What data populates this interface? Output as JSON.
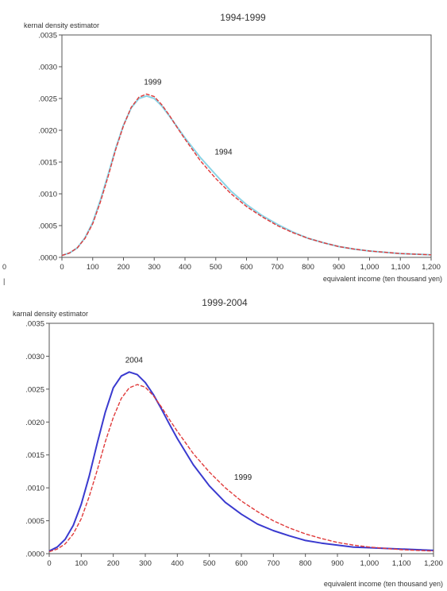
{
  "margin_marks": [
    "0",
    "|"
  ],
  "chart_data": [
    {
      "type": "line",
      "title": "1994-1999",
      "ylabel": "kernal density estimator",
      "xlabel": "equivalent income (ten thousand yen)",
      "xlim": [
        0,
        1200
      ],
      "ylim": [
        0,
        0.0035
      ],
      "xticks": [
        "0",
        "100",
        "200",
        "300",
        "400",
        "500",
        "600",
        "700",
        "800",
        "900",
        "1,000",
        "1,100",
        "1,200"
      ],
      "yticks": [
        ".0000",
        ".0005",
        ".0010",
        ".0015",
        ".0020",
        ".0025",
        ".0030",
        ".0035"
      ],
      "colors": {
        "series_1994": "#8ad4e6",
        "series_1999": "#e03a3a"
      },
      "series": [
        {
          "name": "1994",
          "x": [
            0,
            25,
            50,
            75,
            100,
            125,
            150,
            175,
            200,
            225,
            250,
            275,
            300,
            325,
            350,
            375,
            400,
            450,
            500,
            550,
            600,
            650,
            700,
            750,
            800,
            850,
            900,
            950,
            1000,
            1050,
            1100,
            1150,
            1200
          ],
          "y": [
            3e-05,
            7e-05,
            0.00015,
            0.00031,
            0.00055,
            0.0009,
            0.0013,
            0.00172,
            0.00208,
            0.00235,
            0.0025,
            0.00254,
            0.0025,
            0.00238,
            0.00222,
            0.00205,
            0.00188,
            0.00157,
            0.0013,
            0.00104,
            0.00083,
            0.00066,
            0.00052,
            0.0004,
            0.0003,
            0.00023,
            0.00017,
            0.00013,
            0.0001,
            8e-05,
            6e-05,
            5e-05,
            4e-05
          ]
        },
        {
          "name": "1999",
          "x": [
            0,
            25,
            50,
            75,
            100,
            125,
            150,
            175,
            200,
            225,
            250,
            275,
            300,
            325,
            350,
            375,
            400,
            450,
            500,
            550,
            600,
            650,
            700,
            750,
            800,
            850,
            900,
            950,
            1000,
            1050,
            1100,
            1150,
            1200
          ],
          "y": [
            3e-05,
            7e-05,
            0.00015,
            0.0003,
            0.00053,
            0.00087,
            0.00127,
            0.0017,
            0.00207,
            0.00236,
            0.00252,
            0.00257,
            0.00253,
            0.0024,
            0.00223,
            0.00204,
            0.00186,
            0.00152,
            0.00124,
            0.001,
            0.0008,
            0.00064,
            0.0005,
            0.00039,
            0.0003,
            0.00023,
            0.00017,
            0.00013,
            0.0001,
            8e-05,
            6e-05,
            5e-05,
            4e-05
          ]
        }
      ],
      "annotations": [
        {
          "text": "1999",
          "x": 295,
          "y": 0.00272
        },
        {
          "text": "1994",
          "x": 525,
          "y": 0.00162
        }
      ]
    },
    {
      "type": "line",
      "title": "1999-2004",
      "ylabel": "karnal density estimator",
      "xlabel": "equivalent income (ten thousand yen)",
      "xlim": [
        0,
        1200
      ],
      "ylim": [
        0,
        0.0035
      ],
      "xticks": [
        "0",
        "100",
        "200",
        "300",
        "400",
        "500",
        "600",
        "700",
        "800",
        "900",
        "1,000",
        "1,100",
        "1,200"
      ],
      "yticks": [
        ".0000",
        ".0005",
        ".0010",
        ".0015",
        ".0020",
        ".0025",
        ".0030",
        ".0035"
      ],
      "colors": {
        "series_2004": "#3a3acf",
        "series_1999": "#e03a3a"
      },
      "series": [
        {
          "name": "2004",
          "x": [
            0,
            25,
            50,
            75,
            100,
            125,
            150,
            175,
            200,
            225,
            250,
            275,
            300,
            325,
            350,
            375,
            400,
            450,
            500,
            550,
            600,
            650,
            700,
            750,
            800,
            850,
            900,
            950,
            1000,
            1050,
            1100,
            1150,
            1200
          ],
          "y": [
            4e-05,
            0.0001,
            0.00022,
            0.00043,
            0.00075,
            0.00118,
            0.00168,
            0.00215,
            0.00252,
            0.0027,
            0.00276,
            0.00272,
            0.0026,
            0.00242,
            0.0022,
            0.00197,
            0.00175,
            0.00135,
            0.00103,
            0.00078,
            0.0006,
            0.00045,
            0.00035,
            0.00027,
            0.0002,
            0.00016,
            0.00013,
            0.0001,
            9e-05,
            8e-05,
            7e-05,
            6e-05,
            5e-05
          ]
        },
        {
          "name": "1999",
          "x": [
            0,
            25,
            50,
            75,
            100,
            125,
            150,
            175,
            200,
            225,
            250,
            275,
            300,
            325,
            350,
            375,
            400,
            450,
            500,
            550,
            600,
            650,
            700,
            750,
            800,
            850,
            900,
            950,
            1000,
            1050,
            1100,
            1150,
            1200
          ],
          "y": [
            3e-05,
            7e-05,
            0.00015,
            0.0003,
            0.00053,
            0.00087,
            0.00127,
            0.0017,
            0.00207,
            0.00236,
            0.00252,
            0.00257,
            0.00253,
            0.0024,
            0.00223,
            0.00204,
            0.00186,
            0.00152,
            0.00124,
            0.001,
            0.0008,
            0.00064,
            0.0005,
            0.00039,
            0.0003,
            0.00023,
            0.00017,
            0.00013,
            0.0001,
            8e-05,
            6e-05,
            5e-05,
            4e-05
          ]
        }
      ],
      "annotations": [
        {
          "text": "2004",
          "x": 265,
          "y": 0.0029
        },
        {
          "text": "1999",
          "x": 605,
          "y": 0.00112
        }
      ]
    }
  ]
}
